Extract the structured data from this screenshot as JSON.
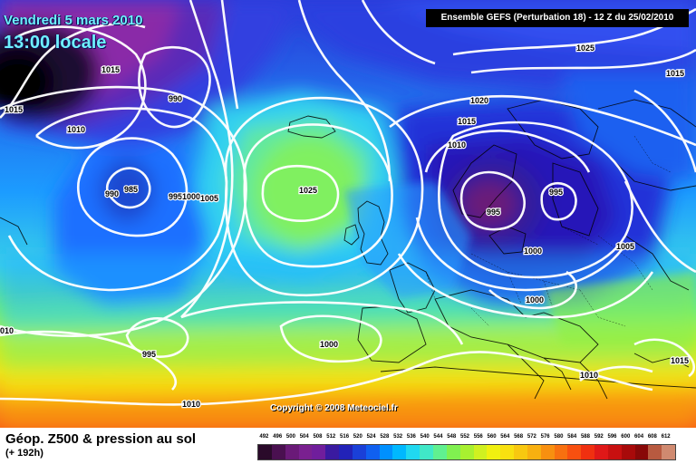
{
  "header": {
    "date": "Vendredi 5 mars 2010",
    "time": "13:00 locale",
    "run": "Ensemble GEFS (Perturbation 18)  -  12 Z du 25/02/2010"
  },
  "copyright": "Copyright © 2008 Meteociel.fr",
  "legend": {
    "title": "Géop. Z500 & pression au sol",
    "subtitle": "(+ 192h)",
    "scale_values": [
      "492",
      "496",
      "500",
      "504",
      "508",
      "512",
      "516",
      "520",
      "524",
      "528",
      "532",
      "536",
      "540",
      "544",
      "548",
      "552",
      "556",
      "560",
      "564",
      "568",
      "572",
      "576",
      "580",
      "584",
      "588",
      "592",
      "596",
      "600",
      "604",
      "608",
      "612"
    ],
    "scale_colors": [
      "#2a0a2a",
      "#4a1050",
      "#6a1a78",
      "#7a2090",
      "#701e9c",
      "#3a1aa0",
      "#2222b8",
      "#1a40d8",
      "#1060f0",
      "#0090ff",
      "#00b8ff",
      "#20d8f0",
      "#40e8c8",
      "#60f090",
      "#80f050",
      "#a8f030",
      "#d0f020",
      "#f0f010",
      "#f8e010",
      "#f8c810",
      "#f8b010",
      "#f89010",
      "#f87010",
      "#f85010",
      "#f03010",
      "#e01818",
      "#c81010",
      "#a80a0a",
      "#880808",
      "#b85a40",
      "#d08a70"
    ]
  },
  "isobars": [
    {
      "label": "1015",
      "name": "isobar-label-1015-nw"
    },
    {
      "label": "1015",
      "name": "isobar-label-1015-w"
    },
    {
      "label": "990",
      "name": "isobar-label-990-n"
    },
    {
      "label": "1010",
      "name": "isobar-label-1010-w"
    },
    {
      "label": "990",
      "name": "isobar-label-990-w"
    },
    {
      "label": "985",
      "name": "isobar-label-985"
    },
    {
      "label": "995",
      "name": "isobar-label-995-mid"
    },
    {
      "label": "1000",
      "name": "isobar-label-1000-mid"
    },
    {
      "label": "1005",
      "name": "isobar-label-1005-mid"
    },
    {
      "label": "1025",
      "name": "isobar-label-1025-atl"
    },
    {
      "label": "1025",
      "name": "isobar-label-1025-ne"
    },
    {
      "label": "1015",
      "name": "isobar-label-1015-ne"
    },
    {
      "label": "1020",
      "name": "isobar-label-1020"
    },
    {
      "label": "1015",
      "name": "isobar-label-1015-c"
    },
    {
      "label": "1010",
      "name": "isobar-label-1010-c"
    },
    {
      "label": "995",
      "name": "isobar-label-995-low"
    },
    {
      "label": "995",
      "name": "isobar-label-995-e"
    },
    {
      "label": "1000",
      "name": "isobar-label-1000-e"
    },
    {
      "label": "1005",
      "name": "isobar-label-1005-e"
    },
    {
      "label": "1000",
      "name": "isobar-label-1000-se"
    },
    {
      "label": "1010",
      "name": "isobar-label-010-w"
    },
    {
      "label": "995",
      "name": "isobar-label-995-sw"
    },
    {
      "label": "1000",
      "name": "isobar-label-1000-s"
    },
    {
      "label": "1010",
      "name": "isobar-label-1010-sw"
    },
    {
      "label": "1010",
      "name": "isobar-label-1010-se"
    },
    {
      "label": "1015",
      "name": "isobar-label-1015-se"
    }
  ]
}
